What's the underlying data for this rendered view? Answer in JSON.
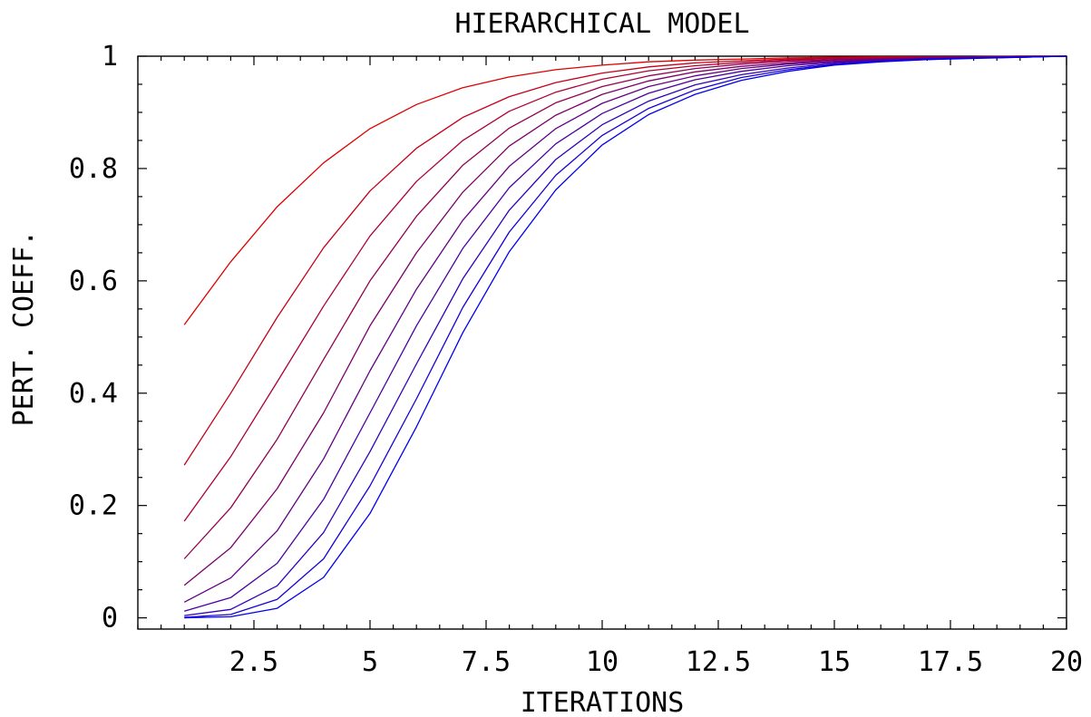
{
  "chart_data": {
    "type": "line",
    "title": "HIERARCHICAL MODEL",
    "xlabel": "ITERATIONS",
    "ylabel": "PERT. COEFF.",
    "xlim": [
      0,
      20
    ],
    "ylim": [
      -0.02,
      1.0
    ],
    "xticks": [
      2.5,
      5,
      7.5,
      10,
      12.5,
      15,
      17.5,
      20
    ],
    "xtick_labels": [
      "2.5",
      "5",
      "7.5",
      "10",
      "12.5",
      "15",
      "17.5",
      "20"
    ],
    "yticks": [
      0,
      0.2,
      0.4,
      0.6,
      0.8,
      1
    ],
    "ytick_labels": [
      "0",
      "0.2",
      "0.4",
      "0.6",
      "0.8",
      "1"
    ],
    "grid": false,
    "legend": "none",
    "colors": {
      "first_series": "#dd0000",
      "last_series": "#0000ee",
      "axes": "#000000"
    },
    "x": [
      1,
      2,
      3,
      4,
      5,
      6,
      7,
      8,
      9,
      10,
      11,
      12,
      13,
      14,
      15,
      16,
      17,
      18,
      19,
      20
    ],
    "series": [
      {
        "values": [
          0.522,
          0.634,
          0.732,
          0.81,
          0.871,
          0.914,
          0.944,
          0.963,
          0.976,
          0.984,
          0.99,
          0.993,
          0.995,
          0.997,
          0.998,
          0.999,
          0.999,
          0.999,
          1.0,
          1.0
        ]
      },
      {
        "values": [
          0.272,
          0.4,
          0.535,
          0.659,
          0.76,
          0.836,
          0.891,
          0.928,
          0.953,
          0.97,
          0.981,
          0.988,
          0.992,
          0.995,
          0.997,
          0.998,
          0.999,
          0.999,
          1.0,
          1.0
        ]
      },
      {
        "values": [
          0.172,
          0.287,
          0.42,
          0.555,
          0.68,
          0.777,
          0.85,
          0.902,
          0.936,
          0.959,
          0.974,
          0.983,
          0.989,
          0.993,
          0.996,
          0.997,
          0.998,
          0.999,
          1.0,
          1.0
        ]
      },
      {
        "values": [
          0.105,
          0.196,
          0.318,
          0.46,
          0.6,
          0.715,
          0.806,
          0.872,
          0.917,
          0.946,
          0.965,
          0.978,
          0.986,
          0.991,
          0.994,
          0.996,
          0.998,
          0.999,
          0.999,
          1.0
        ]
      },
      {
        "values": [
          0.058,
          0.125,
          0.23,
          0.365,
          0.52,
          0.65,
          0.758,
          0.84,
          0.895,
          0.932,
          0.956,
          0.972,
          0.982,
          0.988,
          0.993,
          0.995,
          0.997,
          0.998,
          0.999,
          1.0
        ]
      },
      {
        "values": [
          0.028,
          0.071,
          0.155,
          0.283,
          0.44,
          0.585,
          0.708,
          0.804,
          0.871,
          0.916,
          0.946,
          0.965,
          0.978,
          0.986,
          0.991,
          0.994,
          0.996,
          0.998,
          0.999,
          1.0
        ]
      },
      {
        "values": [
          0.012,
          0.036,
          0.097,
          0.211,
          0.365,
          0.52,
          0.658,
          0.766,
          0.844,
          0.898,
          0.934,
          0.958,
          0.973,
          0.983,
          0.989,
          0.993,
          0.996,
          0.997,
          0.999,
          1.0
        ]
      },
      {
        "values": [
          0.004,
          0.015,
          0.057,
          0.152,
          0.296,
          0.452,
          0.604,
          0.726,
          0.816,
          0.878,
          0.92,
          0.949,
          0.967,
          0.979,
          0.987,
          0.992,
          0.995,
          0.997,
          0.998,
          1.0
        ]
      },
      {
        "values": [
          0.001,
          0.006,
          0.033,
          0.105,
          0.235,
          0.39,
          0.553,
          0.687,
          0.788,
          0.859,
          0.907,
          0.94,
          0.962,
          0.976,
          0.985,
          0.991,
          0.994,
          0.997,
          0.998,
          1.0
        ]
      },
      {
        "values": [
          0.0,
          0.002,
          0.017,
          0.072,
          0.186,
          0.34,
          0.508,
          0.652,
          0.762,
          0.842,
          0.896,
          0.932,
          0.957,
          0.973,
          0.984,
          0.99,
          0.994,
          0.996,
          0.998,
          1.0
        ]
      }
    ]
  }
}
